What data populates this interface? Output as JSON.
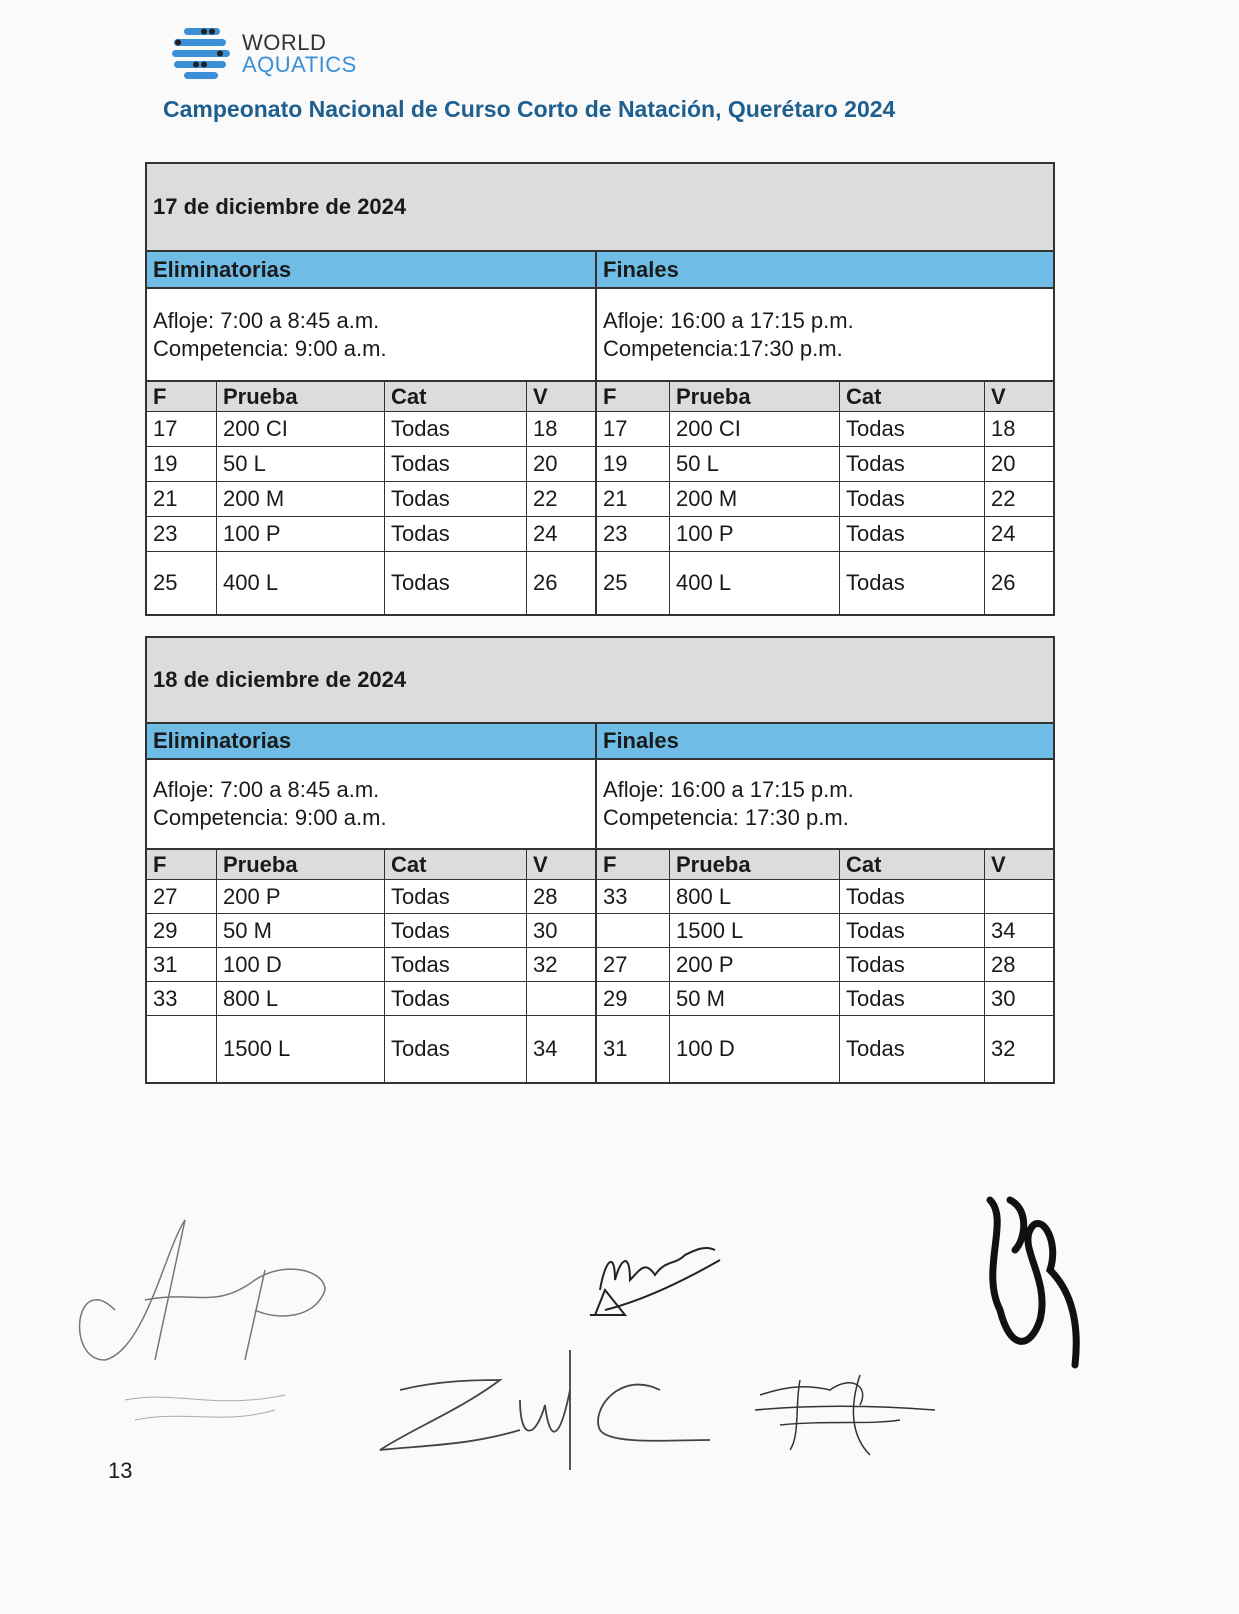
{
  "logo": {
    "line1": "WORLD",
    "line2": "AQUATICS",
    "brand_color": "#3a8fd6"
  },
  "title": "Campeonato Nacional de Curso Corto de Natación, Querétaro 2024",
  "title_color": "#1f5f8f",
  "header_blue": "#6fbde6",
  "columns": [
    "F",
    "Prueba",
    "Cat",
    "V"
  ],
  "days": [
    {
      "date": "17 de diciembre de 2024",
      "heats": {
        "label": "Eliminatorias",
        "afloje": "Afloje: 7:00 a 8:45 a.m.",
        "competencia": "Competencia: 9:00 a.m."
      },
      "finals": {
        "label": "Finales",
        "afloje": "Afloje: 16:00 a 17:15 p.m.",
        "competencia": "Competencia:17:30 p.m."
      },
      "rows": [
        [
          "17",
          "200 CI",
          "Todas",
          "18",
          "17",
          "200 CI",
          "Todas",
          "18"
        ],
        [
          "19",
          "50 L",
          "Todas",
          "20",
          "19",
          "50 L",
          "Todas",
          "20"
        ],
        [
          "21",
          "200 M",
          "Todas",
          "22",
          "21",
          "200 M",
          "Todas",
          "22"
        ],
        [
          "23",
          "100 P",
          "Todas",
          "24",
          "23",
          "100 P",
          "Todas",
          "24"
        ],
        [
          "25",
          "400 L",
          "Todas",
          "26",
          "25",
          "400 L",
          "Todas",
          "26"
        ]
      ]
    },
    {
      "date": "18 de diciembre de 2024",
      "heats": {
        "label": "Eliminatorias",
        "afloje": "Afloje: 7:00 a 8:45 a.m.",
        "competencia": "Competencia: 9:00 a.m."
      },
      "finals": {
        "label": "Finales",
        "afloje": "Afloje: 16:00 a 17:15 p.m.",
        "competencia": "Competencia: 17:30 p.m."
      },
      "rows": [
        [
          "27",
          "200 P",
          "Todas",
          "28",
          "33",
          "800 L",
          "Todas",
          ""
        ],
        [
          "29",
          "50 M",
          "Todas",
          "30",
          "",
          "1500 L",
          "Todas",
          "34"
        ],
        [
          "31",
          "100 D",
          "Todas",
          "32",
          "27",
          "200 P",
          "Todas",
          "28"
        ],
        [
          "33",
          "800 L",
          "Todas",
          "",
          "29",
          "50 M",
          "Todas",
          "30"
        ],
        [
          "",
          "1500 L",
          "Todas",
          "34",
          "31",
          "100 D",
          "Todas",
          "32"
        ]
      ]
    }
  ],
  "page_number": "13"
}
